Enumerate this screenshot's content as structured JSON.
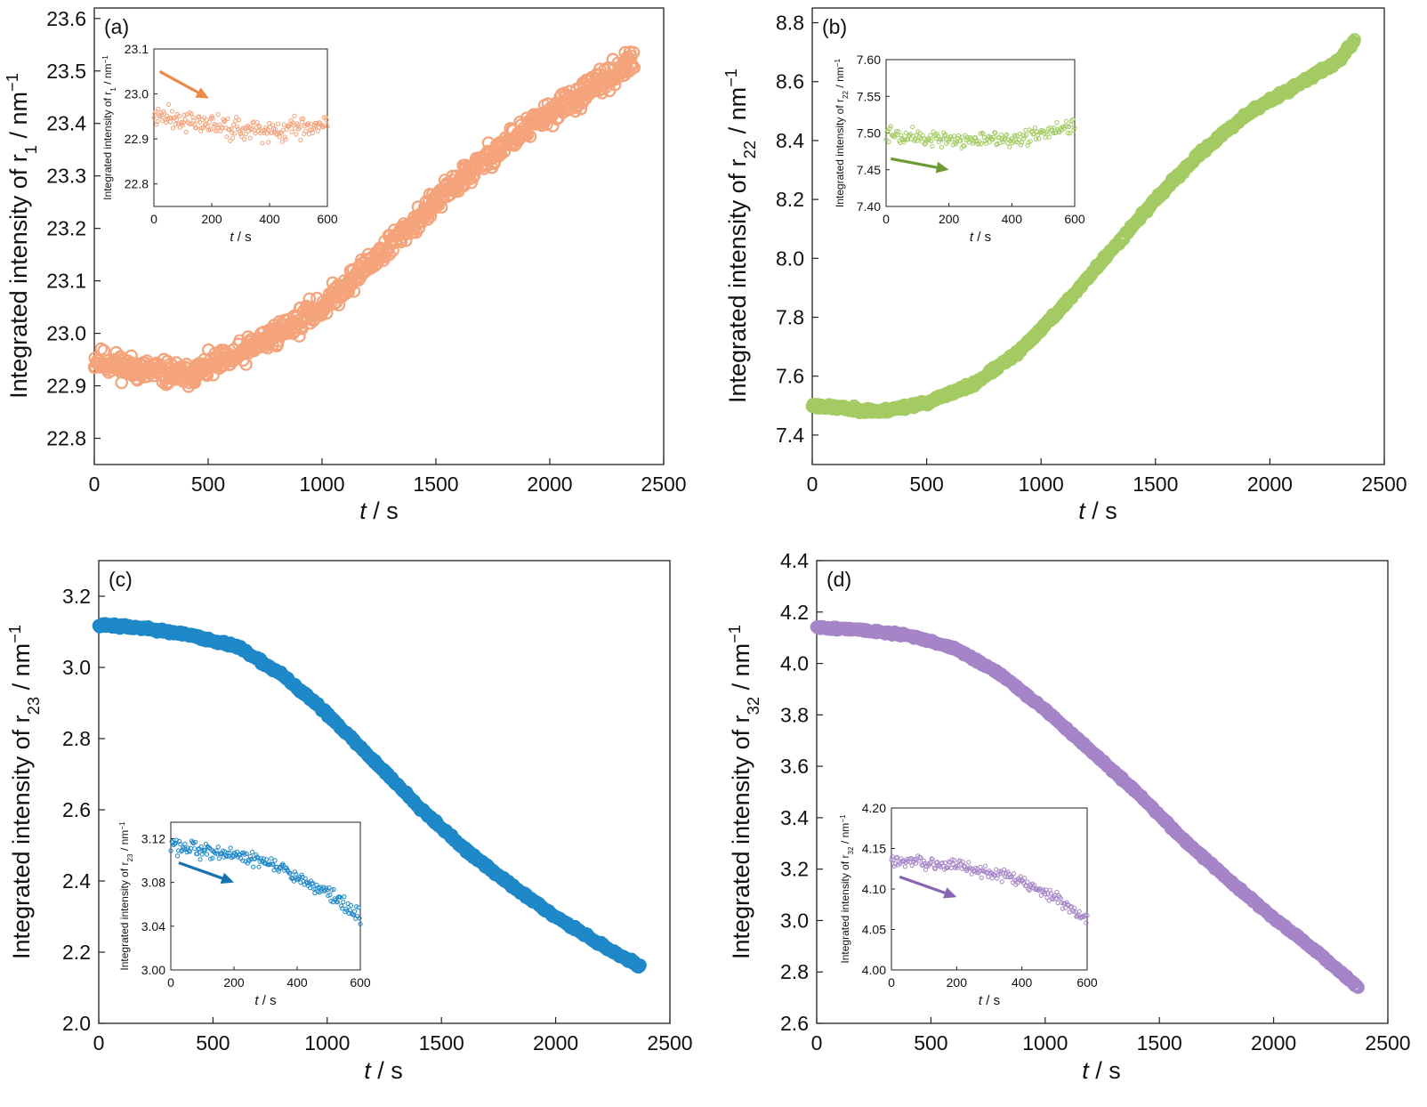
{
  "chart_data": [
    {
      "id": "a",
      "type": "scatter",
      "panel_label": "(a)",
      "color": "#F4A37A",
      "arrow_color": "#EE8A48",
      "xlabel_var": "t",
      "xlabel_unit": " / s",
      "ylabel_prefix": "Integrated intensity of r",
      "ylabel_sub": "1",
      "ylabel_unit": " / nm",
      "ylabel_sup": "−1",
      "xlim": [
        0,
        2500
      ],
      "ylim": [
        22.75,
        23.62
      ],
      "xticks": [
        "0",
        "500",
        "1000",
        "1500",
        "2000",
        "2500"
      ],
      "yticks": [
        "22.8",
        "22.9",
        "23.0",
        "23.1",
        "23.2",
        "23.3",
        "23.4",
        "23.5",
        "23.6"
      ],
      "trend": [
        [
          0,
          22.95
        ],
        [
          200,
          22.93
        ],
        [
          400,
          22.92
        ],
        [
          600,
          22.95
        ],
        [
          800,
          23.0
        ],
        [
          1000,
          23.05
        ],
        [
          1200,
          23.13
        ],
        [
          1400,
          23.21
        ],
        [
          1600,
          23.29
        ],
        [
          1800,
          23.36
        ],
        [
          2000,
          23.42
        ],
        [
          2200,
          23.47
        ],
        [
          2370,
          23.52
        ]
      ],
      "noise": 0.035,
      "inset": {
        "position": "top-left",
        "xlim": [
          0,
          600
        ],
        "ylim": [
          22.75,
          23.1
        ],
        "xticks": [
          "0",
          "200",
          "400",
          "600"
        ],
        "yticks": [
          "22.8",
          "22.9",
          "23.0",
          "23.1"
        ],
        "trend": [
          [
            0,
            22.95
          ],
          [
            200,
            22.93
          ],
          [
            400,
            22.92
          ],
          [
            600,
            22.93
          ]
        ],
        "noise": 0.035,
        "arrow": [
          [
            20,
            23.05
          ],
          [
            190,
            22.99
          ]
        ],
        "xlabel_var": "t",
        "xlabel_unit": " / s",
        "ylabel_prefix": "Integrated intensity of r",
        "ylabel_sub": "1",
        "ylabel_unit": " / nm",
        "ylabel_sup": "−1"
      }
    },
    {
      "id": "b",
      "type": "scatter",
      "panel_label": "(b)",
      "color": "#A4CB63",
      "arrow_color": "#6E9A34",
      "xlabel_var": "t",
      "xlabel_unit": " / s",
      "ylabel_prefix": "Integrated intensity of r",
      "ylabel_sub": "22",
      "ylabel_unit": " / nm",
      "ylabel_sup": "−1",
      "xlim": [
        0,
        2500
      ],
      "ylim": [
        7.3,
        8.85
      ],
      "xticks": [
        "0",
        "500",
        "1000",
        "1500",
        "2000",
        "2500"
      ],
      "yticks": [
        "7.4",
        "7.6",
        "7.8",
        "8.0",
        "8.2",
        "8.4",
        "8.6",
        "8.8"
      ],
      "trend": [
        [
          0,
          7.5
        ],
        [
          300,
          7.48
        ],
        [
          500,
          7.51
        ],
        [
          700,
          7.57
        ],
        [
          900,
          7.68
        ],
        [
          1100,
          7.84
        ],
        [
          1300,
          8.02
        ],
        [
          1500,
          8.2
        ],
        [
          1700,
          8.36
        ],
        [
          1900,
          8.49
        ],
        [
          2100,
          8.58
        ],
        [
          2300,
          8.67
        ],
        [
          2370,
          8.74
        ]
      ],
      "noise": 0.012,
      "inset": {
        "position": "top-left",
        "xlim": [
          0,
          600
        ],
        "ylim": [
          7.4,
          7.6
        ],
        "xticks": [
          "0",
          "200",
          "400",
          "600"
        ],
        "yticks": [
          "7.40",
          "7.45",
          "7.50",
          "7.55",
          "7.60"
        ],
        "trend": [
          [
            0,
            7.5
          ],
          [
            200,
            7.49
          ],
          [
            400,
            7.49
          ],
          [
            600,
            7.51
          ]
        ],
        "noise": 0.014,
        "arrow": [
          [
            15,
            7.465
          ],
          [
            200,
            7.45
          ]
        ],
        "xlabel_var": "t",
        "xlabel_unit": " / s",
        "ylabel_prefix": "Integrated intensity of r",
        "ylabel_sub": "22",
        "ylabel_unit": " / nm",
        "ylabel_sup": "−1"
      }
    },
    {
      "id": "c",
      "type": "scatter",
      "panel_label": "(c)",
      "color": "#1E88C8",
      "arrow_color": "#1473B0",
      "xlabel_var": "t",
      "xlabel_unit": " / s",
      "ylabel_prefix": "Integrated intensity of r",
      "ylabel_sub": "23",
      "ylabel_unit": " / nm",
      "ylabel_sup": "−1",
      "xlim": [
        0,
        2500
      ],
      "ylim": [
        2.0,
        3.3
      ],
      "xticks": [
        "0",
        "500",
        "1000",
        "1500",
        "2000",
        "2500"
      ],
      "yticks": [
        "2.0",
        "2.2",
        "2.4",
        "2.6",
        "2.8",
        "3.0",
        "3.2"
      ],
      "trend": [
        [
          0,
          3.12
        ],
        [
          200,
          3.11
        ],
        [
          400,
          3.09
        ],
        [
          600,
          3.06
        ],
        [
          800,
          2.98
        ],
        [
          1000,
          2.87
        ],
        [
          1200,
          2.74
        ],
        [
          1400,
          2.61
        ],
        [
          1600,
          2.49
        ],
        [
          1800,
          2.39
        ],
        [
          2000,
          2.3
        ],
        [
          2200,
          2.22
        ],
        [
          2370,
          2.16
        ]
      ],
      "noise": 0.008,
      "inset": {
        "position": "bottom-left",
        "xlim": [
          0,
          600
        ],
        "ylim": [
          3.0,
          3.135
        ],
        "xticks": [
          "0",
          "200",
          "400",
          "600"
        ],
        "yticks": [
          "3.00",
          "3.04",
          "3.08",
          "3.12"
        ],
        "trend": [
          [
            0,
            3.115
          ],
          [
            200,
            3.105
          ],
          [
            300,
            3.1
          ],
          [
            400,
            3.085
          ],
          [
            500,
            3.07
          ],
          [
            600,
            3.05
          ]
        ],
        "noise": 0.01,
        "arrow": [
          [
            25,
            3.098
          ],
          [
            200,
            3.08
          ]
        ],
        "xlabel_var": "t",
        "xlabel_unit": " / s",
        "ylabel_prefix": "Integrated intensity of r",
        "ylabel_sub": "23",
        "ylabel_unit": " / nm",
        "ylabel_sup": "−1"
      }
    },
    {
      "id": "d",
      "type": "scatter",
      "panel_label": "(d)",
      "color": "#A585C8",
      "arrow_color": "#8863B4",
      "xlabel_var": "t",
      "xlabel_unit": " / s",
      "ylabel_prefix": "Integrated intensity of r",
      "ylabel_sub": "32",
      "ylabel_unit": " / nm",
      "ylabel_sup": "−1",
      "xlim": [
        0,
        2500
      ],
      "ylim": [
        2.6,
        4.4
      ],
      "xticks": [
        "0",
        "500",
        "1000",
        "1500",
        "2000",
        "2500"
      ],
      "yticks": [
        "2.6",
        "2.8",
        "3.0",
        "3.2",
        "3.4",
        "3.6",
        "3.8",
        "4.0",
        "4.2",
        "4.4"
      ],
      "trend": [
        [
          0,
          4.14
        ],
        [
          200,
          4.13
        ],
        [
          400,
          4.11
        ],
        [
          600,
          4.06
        ],
        [
          800,
          3.96
        ],
        [
          1000,
          3.82
        ],
        [
          1200,
          3.66
        ],
        [
          1400,
          3.5
        ],
        [
          1600,
          3.32
        ],
        [
          1800,
          3.16
        ],
        [
          2000,
          3.01
        ],
        [
          2200,
          2.87
        ],
        [
          2370,
          2.74
        ]
      ],
      "noise": 0.008,
      "inset": {
        "position": "bottom-left",
        "xlim": [
          0,
          600
        ],
        "ylim": [
          4.0,
          4.2
        ],
        "xticks": [
          "0",
          "200",
          "400",
          "600"
        ],
        "yticks": [
          "4.00",
          "4.05",
          "4.10",
          "4.15",
          "4.20"
        ],
        "trend": [
          [
            0,
            4.135
          ],
          [
            200,
            4.13
          ],
          [
            400,
            4.11
          ],
          [
            500,
            4.09
          ],
          [
            600,
            4.06
          ]
        ],
        "noise": 0.012,
        "arrow": [
          [
            25,
            4.115
          ],
          [
            200,
            4.09
          ]
        ],
        "xlabel_var": "t",
        "xlabel_unit": " / s",
        "ylabel_prefix": "Integrated intensity of r",
        "ylabel_sub": "32",
        "ylabel_unit": " / nm",
        "ylabel_sup": "−1"
      }
    }
  ]
}
